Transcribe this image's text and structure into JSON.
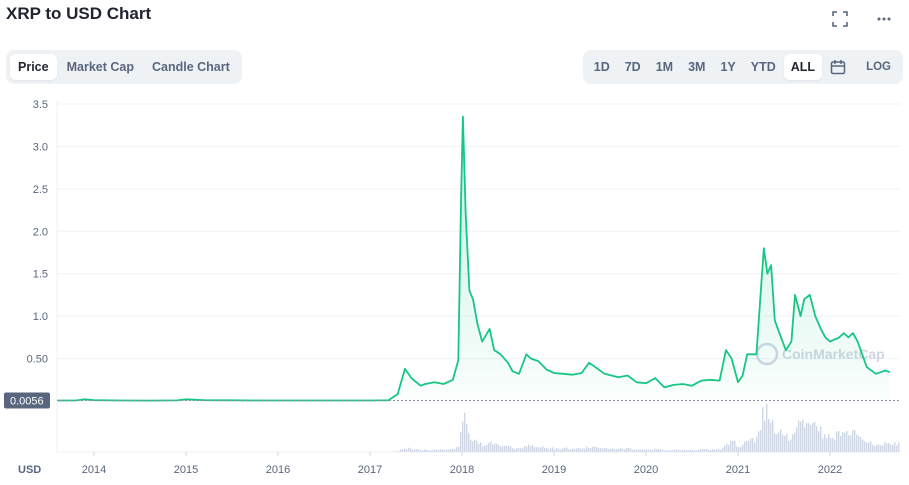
{
  "header": {
    "title": "XRP to USD Chart"
  },
  "icons": {
    "fullscreen": "fullscreen-icon",
    "more": "more-icon",
    "calendar": "calendar-icon",
    "watermark": "coinmarketcap-logo-icon"
  },
  "tabs": [
    {
      "label": "Price",
      "active": true
    },
    {
      "label": "Market Cap",
      "active": false
    },
    {
      "label": "Candle Chart",
      "active": false
    }
  ],
  "ranges": [
    {
      "label": "1D",
      "active": false
    },
    {
      "label": "7D",
      "active": false
    },
    {
      "label": "1M",
      "active": false
    },
    {
      "label": "3M",
      "active": false
    },
    {
      "label": "1Y",
      "active": false
    },
    {
      "label": "YTD",
      "active": false
    },
    {
      "label": "ALL",
      "active": true
    }
  ],
  "log_label": "LOG",
  "colors": {
    "line": "#16c784",
    "volume": "#cfd6e4",
    "badge": "#58667e"
  },
  "chart_data": {
    "type": "line",
    "currency_label": "USD",
    "watermark": "CoinMarketCap",
    "y_ticks": [
      "3.5",
      "3.0",
      "2.5",
      "2.0",
      "1.5",
      "1.0",
      "0.50"
    ],
    "ylim": [
      0,
      3.5
    ],
    "x_ticks": [
      "2014",
      "2015",
      "2016",
      "2017",
      "2018",
      "2019",
      "2020",
      "2021",
      "2022"
    ],
    "reference_price": "0.0056",
    "series": [
      {
        "values": [
          [
            2013.6,
            0.006
          ],
          [
            2013.8,
            0.006
          ],
          [
            2013.9,
            0.02
          ],
          [
            2014.0,
            0.01
          ],
          [
            2014.3,
            0.006
          ],
          [
            2014.6,
            0.005
          ],
          [
            2014.9,
            0.007
          ],
          [
            2015.0,
            0.02
          ],
          [
            2015.2,
            0.01
          ],
          [
            2015.5,
            0.008
          ],
          [
            2015.8,
            0.006
          ],
          [
            2016.0,
            0.006
          ],
          [
            2016.5,
            0.006
          ],
          [
            2017.0,
            0.006
          ],
          [
            2017.2,
            0.008
          ],
          [
            2017.3,
            0.08
          ],
          [
            2017.38,
            0.38
          ],
          [
            2017.45,
            0.27
          ],
          [
            2017.55,
            0.18
          ],
          [
            2017.6,
            0.2
          ],
          [
            2017.7,
            0.22
          ],
          [
            2017.8,
            0.2
          ],
          [
            2017.9,
            0.25
          ],
          [
            2017.96,
            0.48
          ],
          [
            2017.99,
            2.4
          ],
          [
            2018.01,
            3.35
          ],
          [
            2018.04,
            2.2
          ],
          [
            2018.08,
            1.3
          ],
          [
            2018.12,
            1.2
          ],
          [
            2018.17,
            0.9
          ],
          [
            2018.22,
            0.7
          ],
          [
            2018.3,
            0.85
          ],
          [
            2018.35,
            0.6
          ],
          [
            2018.42,
            0.55
          ],
          [
            2018.5,
            0.45
          ],
          [
            2018.55,
            0.35
          ],
          [
            2018.62,
            0.32
          ],
          [
            2018.7,
            0.55
          ],
          [
            2018.75,
            0.5
          ],
          [
            2018.83,
            0.47
          ],
          [
            2018.92,
            0.37
          ],
          [
            2019.0,
            0.33
          ],
          [
            2019.1,
            0.32
          ],
          [
            2019.2,
            0.31
          ],
          [
            2019.3,
            0.33
          ],
          [
            2019.38,
            0.45
          ],
          [
            2019.45,
            0.4
          ],
          [
            2019.55,
            0.32
          ],
          [
            2019.7,
            0.28
          ],
          [
            2019.8,
            0.3
          ],
          [
            2019.9,
            0.22
          ],
          [
            2020.0,
            0.21
          ],
          [
            2020.1,
            0.27
          ],
          [
            2020.2,
            0.16
          ],
          [
            2020.3,
            0.19
          ],
          [
            2020.4,
            0.2
          ],
          [
            2020.5,
            0.18
          ],
          [
            2020.6,
            0.24
          ],
          [
            2020.7,
            0.25
          ],
          [
            2020.8,
            0.24
          ],
          [
            2020.87,
            0.6
          ],
          [
            2020.93,
            0.5
          ],
          [
            2021.0,
            0.22
          ],
          [
            2021.05,
            0.3
          ],
          [
            2021.1,
            0.55
          ],
          [
            2021.2,
            0.55
          ],
          [
            2021.28,
            1.8
          ],
          [
            2021.32,
            1.5
          ],
          [
            2021.36,
            1.6
          ],
          [
            2021.4,
            0.95
          ],
          [
            2021.45,
            0.8
          ],
          [
            2021.52,
            0.6
          ],
          [
            2021.58,
            0.7
          ],
          [
            2021.62,
            1.25
          ],
          [
            2021.68,
            1.0
          ],
          [
            2021.72,
            1.2
          ],
          [
            2021.78,
            1.25
          ],
          [
            2021.84,
            1.0
          ],
          [
            2021.9,
            0.85
          ],
          [
            2021.95,
            0.75
          ],
          [
            2022.0,
            0.7
          ],
          [
            2022.1,
            0.75
          ],
          [
            2022.15,
            0.8
          ],
          [
            2022.2,
            0.75
          ],
          [
            2022.25,
            0.8
          ],
          [
            2022.3,
            0.7
          ],
          [
            2022.35,
            0.55
          ],
          [
            2022.4,
            0.4
          ],
          [
            2022.5,
            0.32
          ],
          [
            2022.6,
            0.36
          ],
          [
            2022.65,
            0.34
          ]
        ]
      }
    ]
  }
}
